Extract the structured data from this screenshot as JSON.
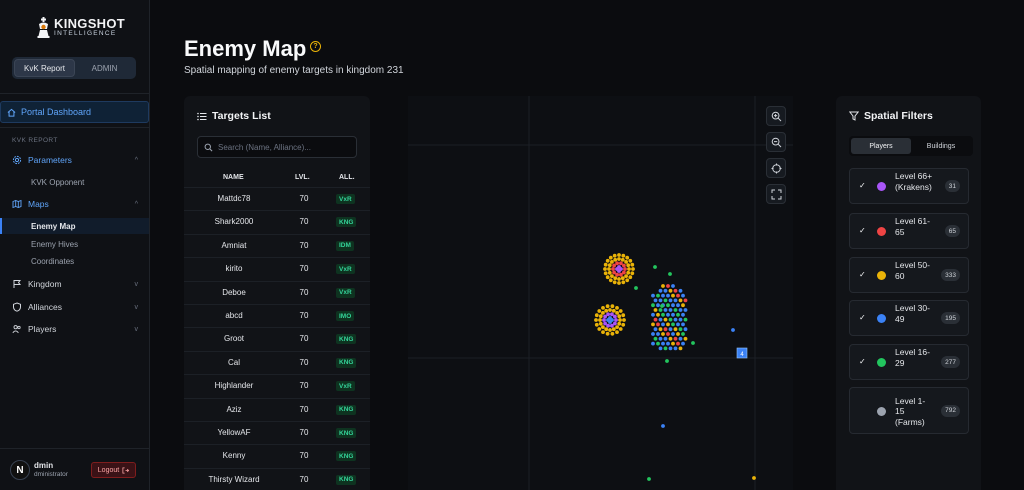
{
  "logo": {
    "title": "KINGSHOT",
    "subtitle": "INTELLIGENCE"
  },
  "mode_switch": {
    "options": [
      "KvK Report",
      "ADMIN"
    ],
    "active": "KvK Report"
  },
  "sidebar": {
    "portal": "Portal Dashboard",
    "section_label": "KVK REPORT",
    "items": [
      {
        "label": "Parameters",
        "icon": "gear-icon",
        "children": [
          "KVK Opponent"
        ]
      },
      {
        "label": "Maps",
        "icon": "map-icon",
        "children": [
          "Enemy Map",
          "Enemy Hives",
          "Coordinates"
        ]
      },
      {
        "label": "Kingdom",
        "icon": "flag-icon"
      },
      {
        "label": "Alliances",
        "icon": "shield-icon"
      },
      {
        "label": "Players",
        "icon": "users-icon"
      }
    ]
  },
  "user": {
    "initial": "N",
    "name": "dmin",
    "role": "dministrator",
    "logout": "Logout"
  },
  "page": {
    "title": "Enemy Map",
    "subtitle": "Spatial mapping of enemy targets in kingdom 231"
  },
  "targets": {
    "title": "Targets List",
    "search_placeholder": "Search (Name, Alliance)...",
    "columns": [
      "NAME",
      "LVL.",
      "ALL."
    ],
    "rows": [
      {
        "name": "Mattdc78",
        "lvl": "70",
        "all": "VxR"
      },
      {
        "name": "Shark2000",
        "lvl": "70",
        "all": "KNG"
      },
      {
        "name": "Amniat",
        "lvl": "70",
        "all": "IDM"
      },
      {
        "name": "kirito",
        "lvl": "70",
        "all": "VxR"
      },
      {
        "name": "Deboe",
        "lvl": "70",
        "all": "VxR"
      },
      {
        "name": "abcd",
        "lvl": "70",
        "all": "IMO"
      },
      {
        "name": "Groot",
        "lvl": "70",
        "all": "KNG"
      },
      {
        "name": "Cal",
        "lvl": "70",
        "all": "KNG"
      },
      {
        "name": "Highlander",
        "lvl": "70",
        "all": "VxR"
      },
      {
        "name": "Aziz",
        "lvl": "70",
        "all": "KNG"
      },
      {
        "name": "YellowAF",
        "lvl": "70",
        "all": "KNG"
      },
      {
        "name": "Kenny",
        "lvl": "70",
        "all": "KNG"
      },
      {
        "name": "Thirsty Wizard",
        "lvl": "70",
        "all": "KNG"
      }
    ]
  },
  "map": {
    "marker_label": "4"
  },
  "filters": {
    "title": "Spatial Filters",
    "tabs": [
      "Players",
      "Buildings"
    ],
    "active_tab": "Players",
    "items": [
      {
        "label": "Level 66+ (Krakens)",
        "count": "31",
        "color": "#a855f7",
        "checked": true
      },
      {
        "label": "Level 61-65",
        "count": "65",
        "color": "#ef4444",
        "checked": true
      },
      {
        "label": "Level 50-60",
        "count": "333",
        "color": "#eab308",
        "checked": true
      },
      {
        "label": "Level 30-49",
        "count": "195",
        "color": "#3b82f6",
        "checked": true
      },
      {
        "label": "Level 16-29",
        "count": "277",
        "color": "#22c55e",
        "checked": true
      },
      {
        "label": "Level 1-15 (Farms)",
        "count": "792",
        "color": "#9ca3af",
        "checked": false
      }
    ]
  }
}
